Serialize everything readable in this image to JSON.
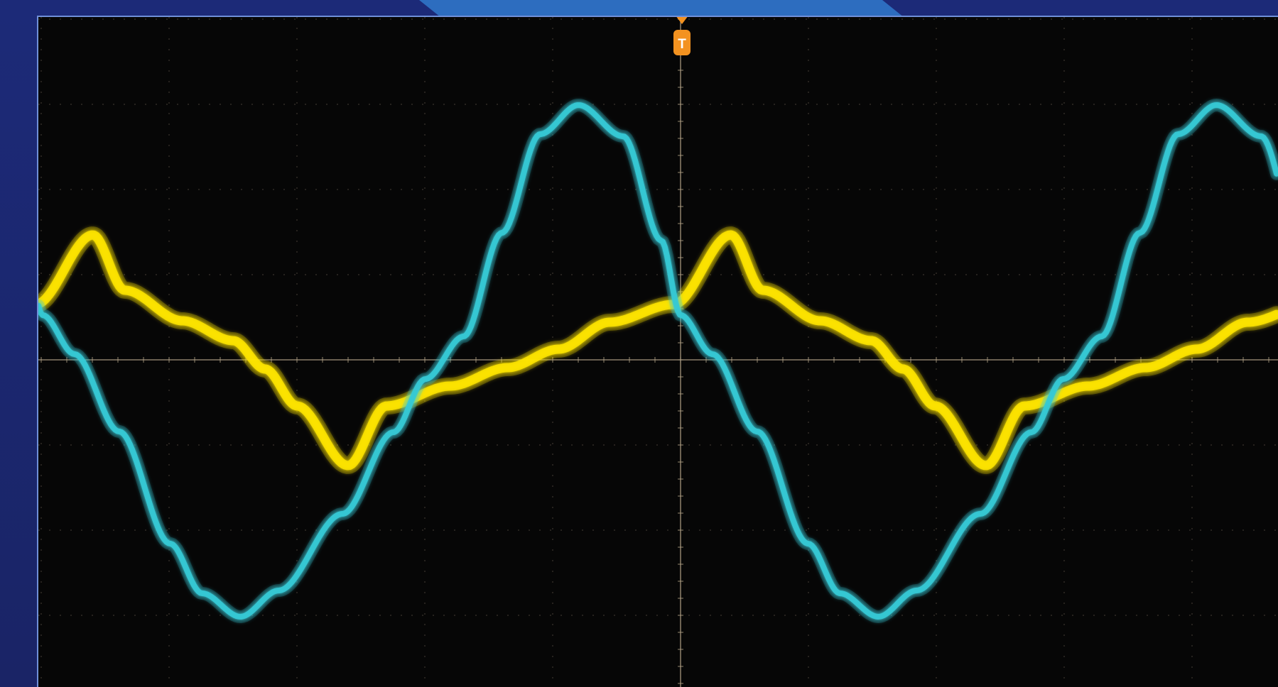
{
  "scope": {
    "trigger": {
      "label": "T",
      "color": "#f39220"
    },
    "channels": [
      {
        "name": "",
        "color": "#ffe600",
        "kind": "yellow-trace"
      },
      {
        "name": "",
        "color": "#35c9d5",
        "kind": "cyan-trace"
      }
    ],
    "colors": {
      "background": "#060606",
      "frame": "#1b2570",
      "graticule": "#b7a58a",
      "border": "#6f8fd8"
    }
  }
}
